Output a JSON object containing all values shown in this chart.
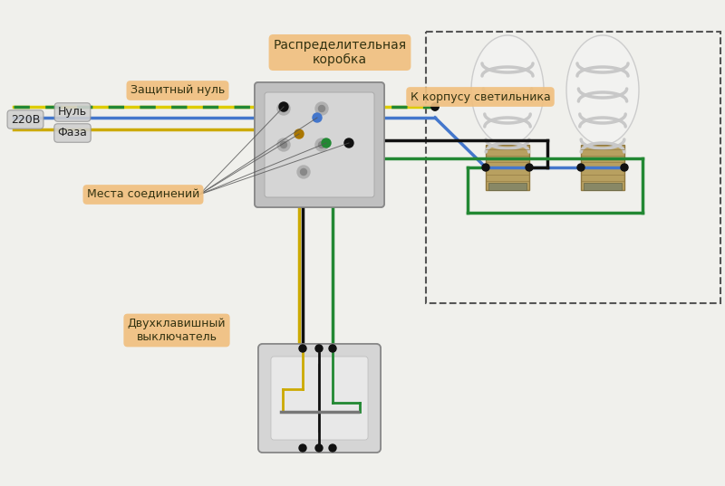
{
  "bg_color": "#f0f0ec",
  "wire_colors": {
    "blue": "#4477cc",
    "yellow": "#ccaa00",
    "green": "#228833",
    "black": "#111111",
    "yg_yellow": "#ddcc00",
    "yg_green": "#228833"
  },
  "label_bg": "#f0c080",
  "label_text": "#333311",
  "gray_label_bg": "#d0d0d0",
  "gray_label_edge": "#999999",
  "junction_color": "#111111",
  "dashed_box_color": "#555555",
  "box_face": "#c0c0c0",
  "box_edge": "#888888",
  "box_inner": "#d5d5d5",
  "labels": {
    "dist_box": "Распределительная\nкоробка",
    "null": "Нуль",
    "phase": "Фаза",
    "voltage": "220В",
    "ground_null": "Защитный нуль",
    "connections": "Места соединений",
    "to_fixture": "К корпусу светильника",
    "switch": "Двухклавишный\nвыключатель"
  }
}
